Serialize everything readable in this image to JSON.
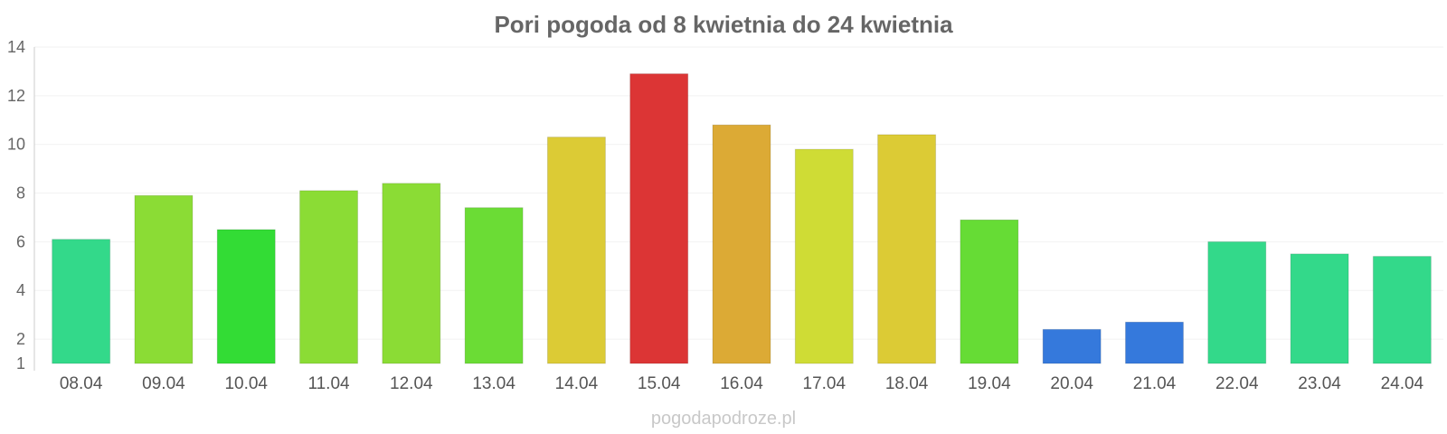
{
  "chart_data": {
    "type": "bar",
    "title": "Pori pogoda od 8 kwietnia do 24 kwietnia",
    "categories": [
      "08.04",
      "09.04",
      "10.04",
      "11.04",
      "12.04",
      "13.04",
      "14.04",
      "15.04",
      "16.04",
      "17.04",
      "18.04",
      "19.04",
      "20.04",
      "21.04",
      "22.04",
      "23.04",
      "24.04"
    ],
    "values": [
      6.1,
      7.9,
      6.5,
      8.1,
      8.4,
      7.4,
      10.3,
      12.9,
      10.8,
      9.8,
      10.4,
      6.9,
      2.4,
      2.7,
      6.0,
      5.5,
      5.4
    ],
    "colors": [
      "#33d98a",
      "#8bdc35",
      "#33dc35",
      "#8bdc35",
      "#8bdc35",
      "#6bdc35",
      "#dccb35",
      "#dc3535",
      "#dcaa35",
      "#cfdc35",
      "#dccb35",
      "#66dc35",
      "#3579dc",
      "#3579dc",
      "#33d98a",
      "#33d98a",
      "#33d98a"
    ],
    "y_ticks": [
      1,
      2,
      4,
      6,
      8,
      10,
      12,
      14
    ],
    "ylim": [
      1,
      14
    ],
    "xlabel": "",
    "ylabel": "",
    "grid": true,
    "legend": "none"
  },
  "footer": "pogodapodroze.pl"
}
